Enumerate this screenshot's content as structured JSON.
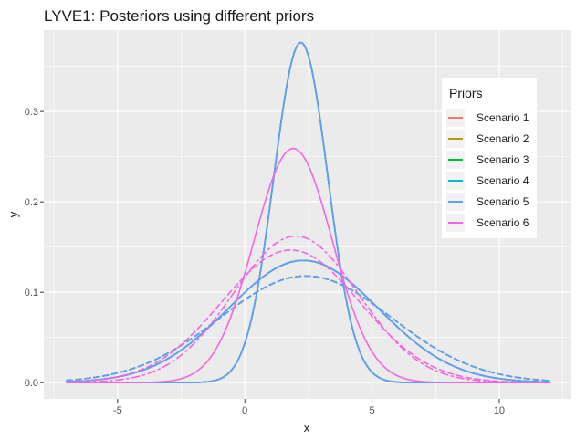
{
  "chart_data": {
    "type": "line",
    "title": "LYVE1: Posteriors using different priors",
    "xlabel": "x",
    "ylabel": "y",
    "xlim": [
      -7.9,
      12.8
    ],
    "ylim": [
      -0.018,
      0.39
    ],
    "x_ticks": [
      -5,
      0,
      5,
      10
    ],
    "y_ticks": [
      0.0,
      0.1,
      0.2,
      0.3
    ],
    "y_tick_labels": [
      "0.0",
      "0.1",
      "0.2",
      "0.3"
    ],
    "grid": true,
    "legend": {
      "title": "Priors",
      "position": "right-inside-top"
    },
    "x_range": [
      -7,
      12
    ],
    "colors": {
      "Scenario 1": "#F8766D",
      "Scenario 2": "#B79F00",
      "Scenario 3": "#00BA38",
      "Scenario 4": "#00BFC4",
      "Scenario 5": "#619CFF",
      "Scenario 6": "#F564E3"
    },
    "series": [
      {
        "name": "Scenario 1",
        "color": "#F8766D",
        "curves": [
          {
            "mean": 2.2,
            "sd": 1.06,
            "style": "solid"
          },
          {
            "mean": 2.3,
            "sd": 2.95,
            "style": "solid"
          },
          {
            "mean": 2.4,
            "sd": 3.38,
            "style": "dashed"
          }
        ]
      },
      {
        "name": "Scenario 2",
        "color": "#B79F00",
        "curves": [
          {
            "mean": 2.2,
            "sd": 1.06,
            "style": "solid"
          },
          {
            "mean": 2.3,
            "sd": 2.95,
            "style": "solid"
          },
          {
            "mean": 2.4,
            "sd": 3.38,
            "style": "dashed"
          }
        ]
      },
      {
        "name": "Scenario 3",
        "color": "#00BA38",
        "curves": [
          {
            "mean": 2.2,
            "sd": 1.06,
            "style": "solid"
          },
          {
            "mean": 2.3,
            "sd": 2.95,
            "style": "solid"
          },
          {
            "mean": 2.4,
            "sd": 3.38,
            "style": "dashed"
          }
        ]
      },
      {
        "name": "Scenario 4",
        "color": "#00BFC4",
        "curves": [
          {
            "mean": 2.2,
            "sd": 1.06,
            "style": "solid"
          },
          {
            "mean": 2.3,
            "sd": 2.95,
            "style": "solid"
          },
          {
            "mean": 2.4,
            "sd": 3.38,
            "style": "dashed"
          }
        ]
      },
      {
        "name": "Scenario 5",
        "color": "#619CFF",
        "curves": [
          {
            "mean": 2.2,
            "sd": 1.06,
            "style": "solid"
          },
          {
            "mean": 2.3,
            "sd": 2.95,
            "style": "solid"
          },
          {
            "mean": 2.4,
            "sd": 3.38,
            "style": "dashed"
          }
        ]
      },
      {
        "name": "Scenario 6",
        "color": "#F564E3",
        "curves": [
          {
            "mean": 1.9,
            "sd": 1.54,
            "style": "solid"
          },
          {
            "mean": 2.0,
            "sd": 2.46,
            "style": "dashdot"
          },
          {
            "mean": 1.8,
            "sd": 2.72,
            "style": "dashed"
          }
        ]
      }
    ]
  }
}
